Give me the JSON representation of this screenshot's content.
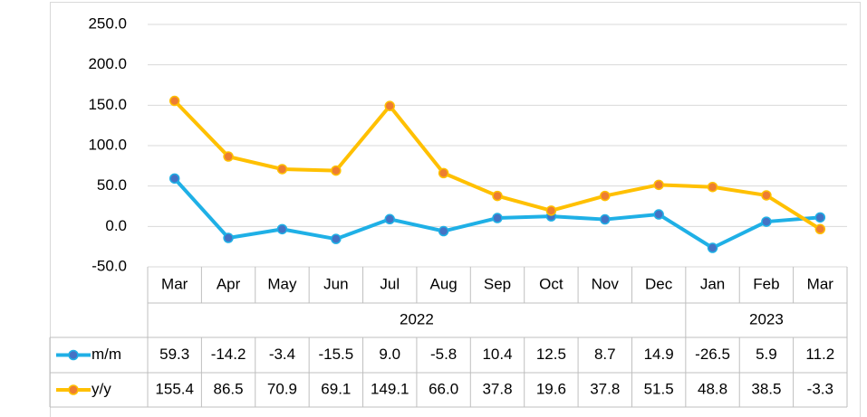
{
  "chart_data": {
    "type": "line",
    "categories": [
      "Mar",
      "Apr",
      "May",
      "Jun",
      "Jul",
      "Aug",
      "Sep",
      "Oct",
      "Nov",
      "Dec",
      "Jan",
      "Feb",
      "Mar"
    ],
    "category_groups": [
      {
        "label": "2022",
        "span": 10
      },
      {
        "label": "2023",
        "span": 3
      }
    ],
    "series": [
      {
        "name": "m/m",
        "color": "#1fb0e6",
        "marker_color": "#4472c4",
        "values": [
          59.3,
          -14.2,
          -3.4,
          -15.5,
          9.0,
          -5.8,
          10.4,
          12.5,
          8.7,
          14.9,
          -26.5,
          5.9,
          11.2
        ],
        "value_labels": [
          "59.3",
          "-14.2",
          "-3.4",
          "-15.5",
          "9.0",
          "-5.8",
          "10.4",
          "12.5",
          "8.7",
          "14.9",
          "-26.5",
          "5.9",
          "11.2"
        ]
      },
      {
        "name": "y/y",
        "color": "#ffc000",
        "marker_color": "#ed7d31",
        "values": [
          155.4,
          86.5,
          70.9,
          69.1,
          149.1,
          66.0,
          37.8,
          19.6,
          37.8,
          51.5,
          48.8,
          38.5,
          -3.3
        ],
        "value_labels": [
          "155.4",
          "86.5",
          "70.9",
          "69.1",
          "149.1",
          "66.0",
          "37.8",
          "19.6",
          "37.8",
          "51.5",
          "48.8",
          "38.5",
          "-3.3"
        ]
      }
    ],
    "ylim": [
      -50,
      250
    ],
    "yticks": [
      {
        "value": -50,
        "label": "-50.0"
      },
      {
        "value": 0,
        "label": "0.0"
      },
      {
        "value": 50,
        "label": "50.0"
      },
      {
        "value": 100,
        "label": "100.0"
      },
      {
        "value": 150,
        "label": "150.0"
      },
      {
        "value": 200,
        "label": "200.0"
      },
      {
        "value": 250,
        "label": "250.0"
      }
    ],
    "grid": true
  }
}
